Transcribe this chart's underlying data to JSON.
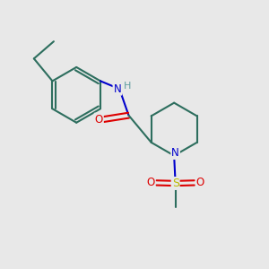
{
  "background_color": "#e8e8e8",
  "bond_color": "#2d6e5e",
  "N_color": "#0000cc",
  "O_color": "#dd0000",
  "S_color": "#bbbb00",
  "H_color": "#5f9ea0",
  "line_width": 1.5,
  "figsize": [
    3.0,
    3.0
  ],
  "dpi": 100,
  "xlim": [
    0,
    10
  ],
  "ylim": [
    0,
    10
  ]
}
